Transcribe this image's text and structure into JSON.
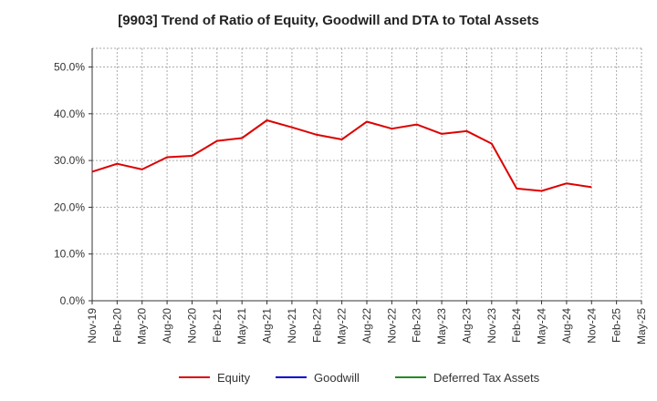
{
  "chart_data": {
    "type": "line",
    "title": "[9903]  Trend of Ratio of Equity, Goodwill and DTA to Total Assets",
    "xlabel": "",
    "ylabel": "",
    "ylim": [
      0,
      0.54
    ],
    "yticks": [
      0,
      0.1,
      0.2,
      0.3,
      0.4,
      0.5
    ],
    "ytick_labels": [
      "0.0%",
      "10.0%",
      "20.0%",
      "30.0%",
      "40.0%",
      "50.0%"
    ],
    "x": [
      "Nov-19",
      "Feb-20",
      "May-20",
      "Aug-20",
      "Nov-20",
      "Feb-21",
      "May-21",
      "Aug-21",
      "Nov-21",
      "Feb-22",
      "May-22",
      "Aug-22",
      "Nov-22",
      "Feb-23",
      "May-23",
      "Aug-23",
      "Nov-23",
      "Feb-24",
      "May-24",
      "Aug-24",
      "Nov-24",
      "Feb-25",
      "May-25"
    ],
    "xtick_labels": [
      "Nov-19",
      "Feb-20",
      "May-20",
      "Aug-20",
      "Nov-20",
      "Feb-21",
      "May-21",
      "Aug-21",
      "Nov-21",
      "Feb-22",
      "May-22",
      "Aug-22",
      "Nov-22",
      "Feb-23",
      "May-23",
      "Aug-23",
      "Nov-23",
      "Feb-24",
      "May-24",
      "Aug-24",
      "Nov-24",
      "Feb-25",
      "May-25"
    ],
    "grid": true,
    "legend_position": "bottom",
    "series": [
      {
        "name": "Equity",
        "color": "#dd0000",
        "values": [
          0.276,
          0.293,
          0.281,
          0.307,
          0.31,
          0.342,
          0.348,
          0.386,
          0.371,
          0.355,
          0.345,
          0.383,
          0.368,
          0.377,
          0.357,
          0.363,
          0.336,
          0.24,
          0.235,
          0.251,
          0.243,
          null,
          null
        ]
      },
      {
        "name": "Goodwill",
        "color": "#0000cc",
        "values": [
          null,
          null,
          null,
          null,
          null,
          null,
          null,
          null,
          null,
          null,
          null,
          null,
          null,
          null,
          null,
          null,
          null,
          null,
          null,
          null,
          null,
          null,
          null
        ]
      },
      {
        "name": "Deferred Tax Assets",
        "color": "#228b22",
        "values": [
          null,
          null,
          null,
          null,
          null,
          null,
          null,
          null,
          null,
          null,
          null,
          null,
          null,
          null,
          null,
          null,
          null,
          null,
          null,
          null,
          null,
          null,
          null
        ]
      }
    ]
  }
}
